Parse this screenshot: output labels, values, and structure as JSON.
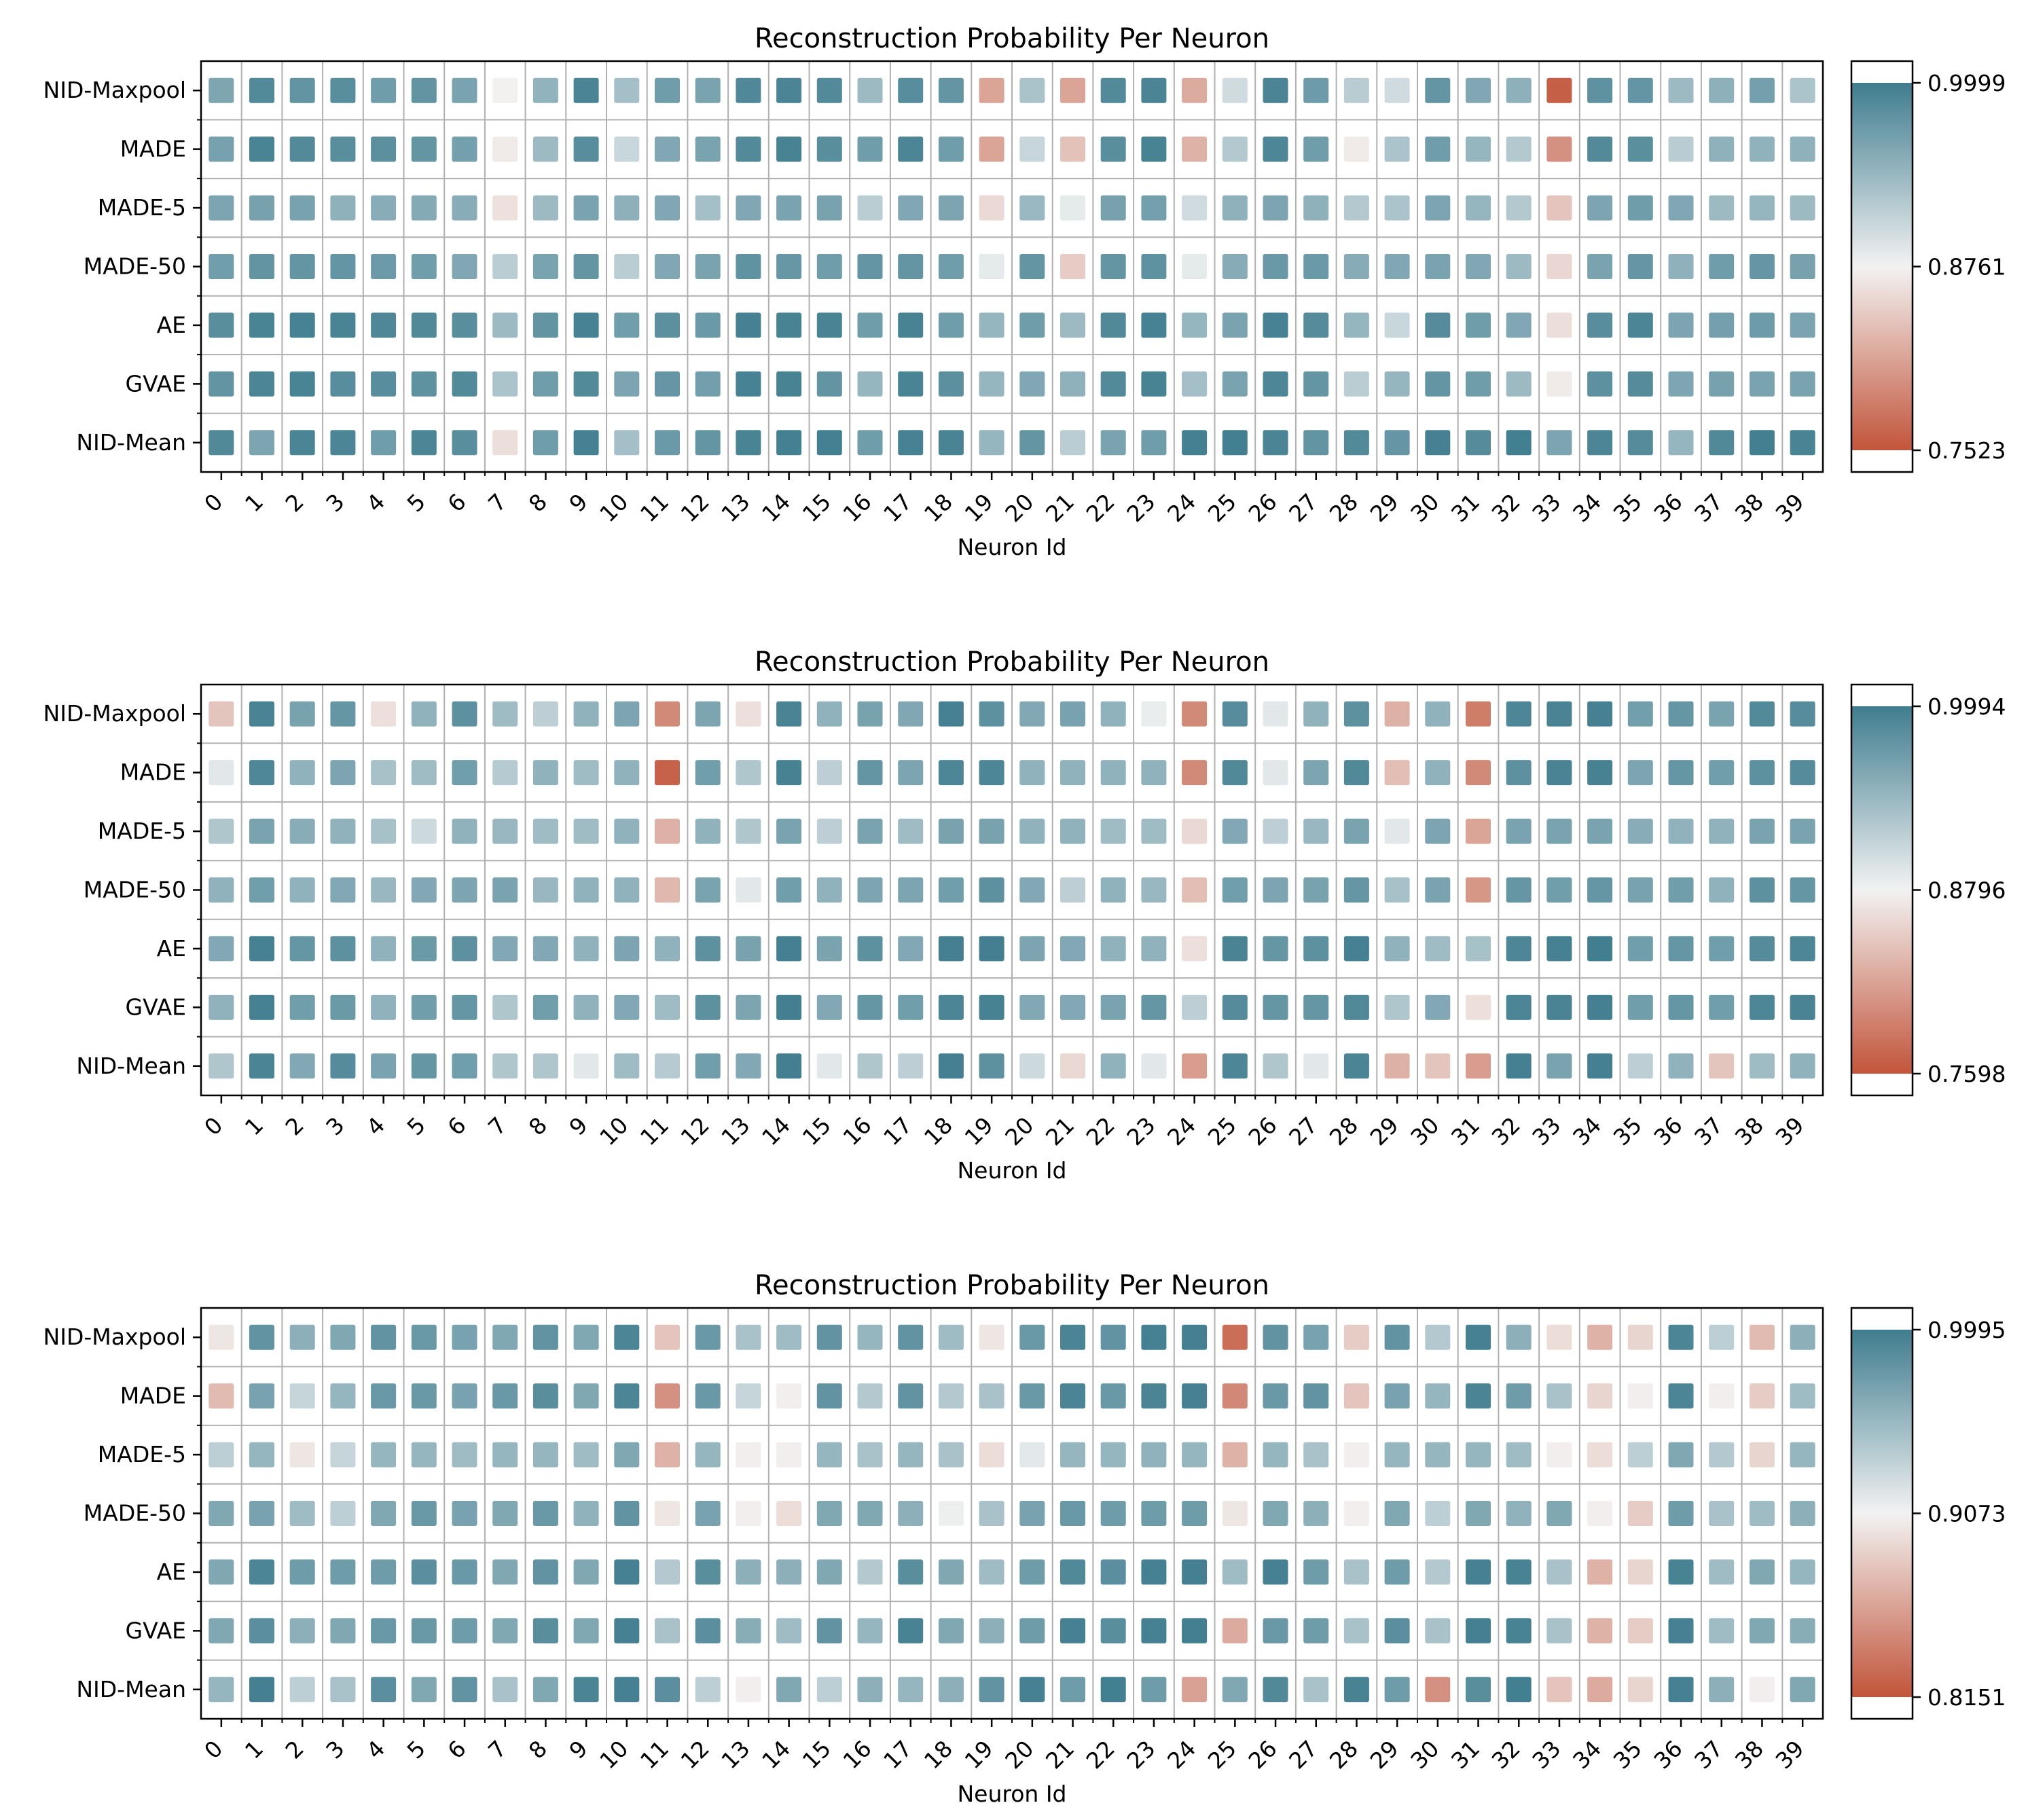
{
  "figure": {
    "charts_count": 3
  },
  "chart_data": [
    {
      "type": "heatmap",
      "title": "Reconstruction Probability Per Neuron",
      "xlabel": "Neuron Id",
      "ylabel": "",
      "rows": [
        "NID-Maxpool",
        "MADE",
        "MADE-5",
        "MADE-50",
        "AE",
        "GVAE",
        "NID-Mean"
      ],
      "columns": [
        "0",
        "1",
        "2",
        "3",
        "4",
        "5",
        "6",
        "7",
        "8",
        "9",
        "10",
        "11",
        "12",
        "13",
        "14",
        "15",
        "16",
        "17",
        "18",
        "19",
        "20",
        "21",
        "22",
        "23",
        "24",
        "25",
        "26",
        "27",
        "28",
        "29",
        "30",
        "31",
        "32",
        "33",
        "34",
        "35",
        "36",
        "37",
        "38",
        "39"
      ],
      "values": [
        [
          0.957,
          0.986,
          0.976,
          0.982,
          0.966,
          0.976,
          0.96,
          0.875,
          0.943,
          0.992,
          0.93,
          0.966,
          0.96,
          0.988,
          0.992,
          0.986,
          0.935,
          0.983,
          0.975,
          0.815,
          0.926,
          0.815,
          0.986,
          0.992,
          0.82,
          0.9,
          0.992,
          0.968,
          0.916,
          0.9,
          0.975,
          0.955,
          0.946,
          0.76,
          0.978,
          0.974,
          0.935,
          0.946,
          0.963,
          0.925
        ],
        [
          0.962,
          0.993,
          0.986,
          0.982,
          0.98,
          0.975,
          0.963,
          0.87,
          0.935,
          0.983,
          0.905,
          0.955,
          0.96,
          0.986,
          0.994,
          0.982,
          0.966,
          0.991,
          0.966,
          0.815,
          0.906,
          0.838,
          0.982,
          0.994,
          0.826,
          0.92,
          0.99,
          0.966,
          0.87,
          0.925,
          0.966,
          0.94,
          0.92,
          0.8,
          0.986,
          0.981,
          0.916,
          0.945,
          0.944,
          0.945
        ],
        [
          0.958,
          0.962,
          0.961,
          0.945,
          0.949,
          0.952,
          0.949,
          0.862,
          0.935,
          0.96,
          0.946,
          0.955,
          0.93,
          0.955,
          0.96,
          0.961,
          0.915,
          0.955,
          0.958,
          0.856,
          0.937,
          0.885,
          0.962,
          0.963,
          0.9,
          0.945,
          0.958,
          0.945,
          0.92,
          0.925,
          0.958,
          0.94,
          0.92,
          0.84,
          0.958,
          0.966,
          0.955,
          0.935,
          0.94,
          0.935
        ],
        [
          0.965,
          0.976,
          0.975,
          0.974,
          0.969,
          0.965,
          0.955,
          0.915,
          0.96,
          0.975,
          0.915,
          0.955,
          0.96,
          0.977,
          0.972,
          0.966,
          0.974,
          0.975,
          0.966,
          0.885,
          0.975,
          0.846,
          0.975,
          0.978,
          0.885,
          0.95,
          0.971,
          0.97,
          0.95,
          0.955,
          0.96,
          0.955,
          0.935,
          0.855,
          0.96,
          0.973,
          0.945,
          0.966,
          0.973,
          0.962
        ],
        [
          0.982,
          0.993,
          0.995,
          0.993,
          0.989,
          0.987,
          0.982,
          0.935,
          0.976,
          0.995,
          0.965,
          0.98,
          0.97,
          0.996,
          0.994,
          0.993,
          0.966,
          0.994,
          0.966,
          0.94,
          0.966,
          0.935,
          0.987,
          0.995,
          0.94,
          0.96,
          0.995,
          0.985,
          0.94,
          0.905,
          0.985,
          0.966,
          0.955,
          0.86,
          0.983,
          0.991,
          0.958,
          0.963,
          0.968,
          0.959
        ],
        [
          0.976,
          0.991,
          0.993,
          0.983,
          0.983,
          0.978,
          0.986,
          0.925,
          0.966,
          0.986,
          0.958,
          0.973,
          0.964,
          0.995,
          0.994,
          0.976,
          0.94,
          0.993,
          0.98,
          0.94,
          0.955,
          0.945,
          0.986,
          0.994,
          0.93,
          0.96,
          0.99,
          0.975,
          0.915,
          0.94,
          0.975,
          0.966,
          0.935,
          0.87,
          0.979,
          0.985,
          0.956,
          0.962,
          0.96,
          0.96
        ],
        [
          0.987,
          0.958,
          0.992,
          0.991,
          0.966,
          0.991,
          0.982,
          0.86,
          0.966,
          0.996,
          0.93,
          0.97,
          0.975,
          0.993,
          0.997,
          0.997,
          0.966,
          0.995,
          0.993,
          0.94,
          0.975,
          0.915,
          0.96,
          0.966,
          0.997,
          0.998,
          0.992,
          0.976,
          0.986,
          0.973,
          0.996,
          0.985,
          0.998,
          0.958,
          0.991,
          0.985,
          0.94,
          0.987,
          0.998,
          0.993
        ]
      ],
      "colorbar": {
        "vmin": 0.7523,
        "vmax": 0.9999,
        "center": 0.8761,
        "ticks": [
          "0.9999",
          "0.8761",
          "0.7523"
        ]
      },
      "colors": {
        "low": "#c2553a",
        "mid": "#f2f2f2",
        "high": "#3f7d8f"
      }
    },
    {
      "type": "heatmap",
      "title": "Reconstruction Probability Per Neuron",
      "xlabel": "Neuron Id",
      "ylabel": "",
      "rows": [
        "NID-Maxpool",
        "MADE",
        "MADE-5",
        "MADE-50",
        "AE",
        "GVAE",
        "NID-Mean"
      ],
      "columns": [
        "0",
        "1",
        "2",
        "3",
        "4",
        "5",
        "6",
        "7",
        "8",
        "9",
        "10",
        "11",
        "12",
        "13",
        "14",
        "15",
        "16",
        "17",
        "18",
        "19",
        "20",
        "21",
        "22",
        "23",
        "24",
        "25",
        "26",
        "27",
        "28",
        "29",
        "30",
        "31",
        "32",
        "33",
        "34",
        "35",
        "36",
        "37",
        "38",
        "39"
      ],
      "values": [
        [
          0.845,
          0.993,
          0.962,
          0.974,
          0.865,
          0.945,
          0.979,
          0.935,
          0.915,
          0.945,
          0.958,
          0.8,
          0.958,
          0.865,
          0.993,
          0.945,
          0.962,
          0.956,
          0.995,
          0.979,
          0.955,
          0.962,
          0.945,
          0.885,
          0.8,
          0.984,
          0.89,
          0.945,
          0.979,
          0.83,
          0.945,
          0.79,
          0.99,
          0.993,
          0.995,
          0.965,
          0.974,
          0.96,
          0.986,
          0.984
        ],
        [
          0.89,
          0.989,
          0.945,
          0.958,
          0.93,
          0.935,
          0.966,
          0.92,
          0.945,
          0.935,
          0.945,
          0.77,
          0.966,
          0.925,
          0.994,
          0.915,
          0.975,
          0.958,
          0.99,
          0.99,
          0.945,
          0.945,
          0.945,
          0.945,
          0.8,
          0.987,
          0.89,
          0.958,
          0.987,
          0.84,
          0.945,
          0.8,
          0.979,
          0.993,
          0.994,
          0.958,
          0.974,
          0.966,
          0.979,
          0.985
        ],
        [
          0.925,
          0.96,
          0.95,
          0.945,
          0.93,
          0.905,
          0.945,
          0.94,
          0.935,
          0.935,
          0.945,
          0.83,
          0.945,
          0.925,
          0.96,
          0.915,
          0.96,
          0.935,
          0.962,
          0.962,
          0.945,
          0.945,
          0.935,
          0.935,
          0.86,
          0.955,
          0.915,
          0.94,
          0.96,
          0.89,
          0.958,
          0.82,
          0.96,
          0.96,
          0.96,
          0.95,
          0.945,
          0.945,
          0.96,
          0.96
        ],
        [
          0.945,
          0.966,
          0.945,
          0.955,
          0.94,
          0.955,
          0.958,
          0.96,
          0.94,
          0.945,
          0.945,
          0.835,
          0.96,
          0.89,
          0.966,
          0.945,
          0.958,
          0.958,
          0.966,
          0.979,
          0.955,
          0.915,
          0.945,
          0.94,
          0.84,
          0.966,
          0.958,
          0.962,
          0.974,
          0.93,
          0.96,
          0.81,
          0.974,
          0.966,
          0.974,
          0.962,
          0.966,
          0.945,
          0.979,
          0.974
        ],
        [
          0.955,
          0.995,
          0.974,
          0.979,
          0.945,
          0.97,
          0.979,
          0.955,
          0.955,
          0.945,
          0.958,
          0.945,
          0.979,
          0.962,
          0.996,
          0.96,
          0.979,
          0.955,
          0.996,
          0.997,
          0.958,
          0.955,
          0.945,
          0.945,
          0.865,
          0.993,
          0.974,
          0.979,
          0.995,
          0.945,
          0.935,
          0.93,
          0.99,
          0.995,
          0.998,
          0.966,
          0.974,
          0.966,
          0.985,
          0.99
        ],
        [
          0.945,
          0.995,
          0.966,
          0.97,
          0.945,
          0.966,
          0.974,
          0.925,
          0.966,
          0.945,
          0.955,
          0.935,
          0.979,
          0.958,
          0.997,
          0.955,
          0.974,
          0.966,
          0.991,
          0.994,
          0.955,
          0.955,
          0.96,
          0.974,
          0.915,
          0.985,
          0.974,
          0.974,
          0.987,
          0.925,
          0.955,
          0.865,
          0.991,
          0.993,
          0.996,
          0.966,
          0.974,
          0.966,
          0.99,
          0.993
        ],
        [
          0.925,
          0.992,
          0.955,
          0.985,
          0.96,
          0.974,
          0.966,
          0.925,
          0.925,
          0.89,
          0.935,
          0.92,
          0.966,
          0.955,
          0.997,
          0.89,
          0.925,
          0.915,
          0.996,
          0.979,
          0.905,
          0.86,
          0.945,
          0.89,
          0.815,
          0.99,
          0.925,
          0.89,
          0.992,
          0.83,
          0.845,
          0.815,
          0.996,
          0.96,
          0.996,
          0.915,
          0.945,
          0.845,
          0.935,
          0.945
        ]
      ],
      "colorbar": {
        "vmin": 0.7598,
        "vmax": 0.9994,
        "center": 0.8796,
        "ticks": [
          "0.9994",
          "0.8796",
          "0.7598"
        ]
      },
      "colors": {
        "low": "#c2553a",
        "mid": "#f2f2f2",
        "high": "#3f7d8f"
      }
    },
    {
      "type": "heatmap",
      "title": "Reconstruction Probability Per Neuron",
      "xlabel": "Neuron Id",
      "ylabel": "",
      "rows": [
        "NID-Maxpool",
        "MADE",
        "MADE-5",
        "MADE-50",
        "AE",
        "GVAE",
        "NID-Mean"
      ],
      "columns": [
        "0",
        "1",
        "2",
        "3",
        "4",
        "5",
        "6",
        "7",
        "8",
        "9",
        "10",
        "11",
        "12",
        "13",
        "14",
        "15",
        "16",
        "17",
        "18",
        "19",
        "20",
        "21",
        "22",
        "23",
        "24",
        "25",
        "26",
        "27",
        "28",
        "29",
        "30",
        "31",
        "32",
        "33",
        "34",
        "35",
        "36",
        "37",
        "38",
        "39"
      ],
      "values": [
        [
          0.9,
          0.982,
          0.96,
          0.966,
          0.982,
          0.978,
          0.97,
          0.966,
          0.982,
          0.966,
          0.993,
          0.88,
          0.978,
          0.945,
          0.95,
          0.982,
          0.955,
          0.982,
          0.95,
          0.9,
          0.978,
          0.994,
          0.982,
          0.996,
          0.997,
          0.83,
          0.982,
          0.97,
          0.885,
          0.982,
          0.94,
          0.996,
          0.96,
          0.895,
          0.87,
          0.89,
          0.993,
          0.935,
          0.875,
          0.96
        ],
        [
          0.875,
          0.97,
          0.93,
          0.955,
          0.978,
          0.978,
          0.97,
          0.978,
          0.986,
          0.966,
          0.993,
          0.85,
          0.978,
          0.93,
          0.905,
          0.982,
          0.94,
          0.982,
          0.94,
          0.945,
          0.978,
          0.994,
          0.978,
          0.994,
          0.996,
          0.845,
          0.978,
          0.982,
          0.88,
          0.97,
          0.955,
          0.994,
          0.975,
          0.945,
          0.89,
          0.905,
          0.993,
          0.905,
          0.885,
          0.95
        ],
        [
          0.935,
          0.955,
          0.9,
          0.93,
          0.955,
          0.955,
          0.95,
          0.955,
          0.955,
          0.95,
          0.966,
          0.87,
          0.955,
          0.905,
          0.905,
          0.955,
          0.945,
          0.955,
          0.945,
          0.895,
          0.915,
          0.955,
          0.955,
          0.958,
          0.955,
          0.87,
          0.955,
          0.945,
          0.905,
          0.955,
          0.955,
          0.955,
          0.95,
          0.905,
          0.895,
          0.935,
          0.966,
          0.94,
          0.89,
          0.955
        ],
        [
          0.966,
          0.97,
          0.95,
          0.935,
          0.966,
          0.978,
          0.97,
          0.966,
          0.978,
          0.958,
          0.982,
          0.9,
          0.97,
          0.905,
          0.895,
          0.966,
          0.966,
          0.96,
          0.91,
          0.945,
          0.97,
          0.978,
          0.975,
          0.975,
          0.975,
          0.9,
          0.966,
          0.96,
          0.905,
          0.966,
          0.935,
          0.966,
          0.958,
          0.966,
          0.905,
          0.885,
          0.975,
          0.945,
          0.95,
          0.96
        ],
        [
          0.966,
          0.993,
          0.975,
          0.975,
          0.975,
          0.985,
          0.978,
          0.966,
          0.982,
          0.966,
          0.996,
          0.94,
          0.986,
          0.96,
          0.96,
          0.966,
          0.94,
          0.986,
          0.966,
          0.95,
          0.975,
          0.99,
          0.985,
          0.996,
          0.997,
          0.95,
          0.996,
          0.975,
          0.945,
          0.975,
          0.94,
          0.996,
          0.995,
          0.945,
          0.87,
          0.89,
          0.995,
          0.95,
          0.966,
          0.955
        ],
        [
          0.966,
          0.985,
          0.96,
          0.966,
          0.978,
          0.978,
          0.975,
          0.966,
          0.986,
          0.966,
          0.996,
          0.945,
          0.985,
          0.962,
          0.95,
          0.982,
          0.955,
          0.995,
          0.966,
          0.96,
          0.975,
          0.996,
          0.986,
          0.996,
          0.998,
          0.865,
          0.978,
          0.975,
          0.945,
          0.985,
          0.945,
          0.997,
          0.995,
          0.945,
          0.87,
          0.885,
          0.996,
          0.95,
          0.966,
          0.962
        ],
        [
          0.955,
          0.997,
          0.935,
          0.945,
          0.985,
          0.966,
          0.982,
          0.945,
          0.966,
          0.994,
          0.996,
          0.985,
          0.935,
          0.905,
          0.966,
          0.935,
          0.96,
          0.955,
          0.96,
          0.982,
          0.996,
          0.975,
          0.998,
          0.975,
          0.86,
          0.966,
          0.99,
          0.945,
          0.995,
          0.975,
          0.85,
          0.986,
          0.998,
          0.88,
          0.865,
          0.89,
          0.996,
          0.96,
          0.905,
          0.966
        ]
      ],
      "colorbar": {
        "vmin": 0.8151,
        "vmax": 0.9995,
        "center": 0.9073,
        "ticks": [
          "0.9995",
          "0.9073",
          "0.8151"
        ]
      },
      "colors": {
        "low": "#c2553a",
        "mid": "#f2f2f2",
        "high": "#3f7d8f"
      }
    }
  ]
}
